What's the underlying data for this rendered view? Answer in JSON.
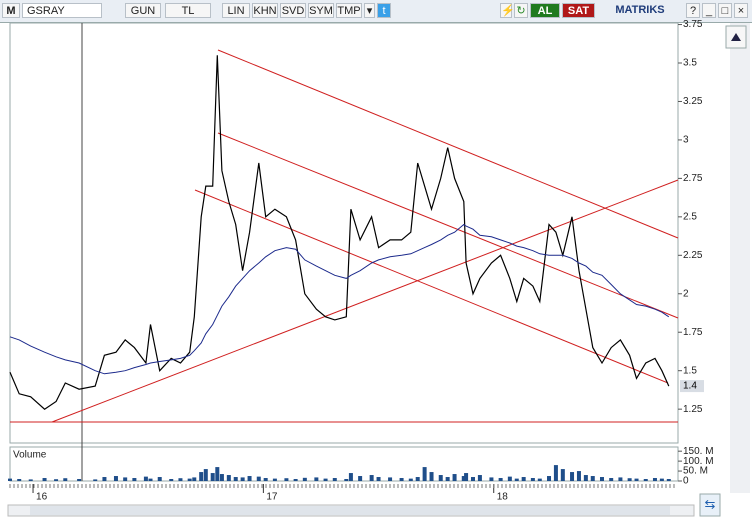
{
  "toolbar": {
    "logo": "M",
    "symbol": "GSRAY",
    "buttons": [
      "GUN",
      "TL",
      "LIN",
      "KHN",
      "SVD",
      "SYM",
      "TMP"
    ],
    "buy": "AL",
    "sell": "SAT",
    "brand": "MATRIKS"
  },
  "chart_data": [
    {
      "type": "line",
      "x": [
        15.9,
        15.94,
        15.99,
        16.05,
        16.1,
        16.14,
        16.2,
        16.27,
        16.31,
        16.36,
        16.4,
        16.44,
        16.49,
        16.51,
        16.55,
        16.6,
        16.64,
        16.68,
        16.7,
        16.73,
        16.75,
        16.78,
        16.8,
        16.82,
        16.85,
        16.88,
        16.91,
        16.94,
        16.98,
        17.01,
        17.05,
        17.1,
        17.14,
        17.18,
        17.23,
        17.27,
        17.31,
        17.36,
        17.38,
        17.42,
        17.47,
        17.5,
        17.55,
        17.6,
        17.64,
        17.67,
        17.7,
        17.73,
        17.77,
        17.8,
        17.83,
        17.87,
        17.88,
        17.91,
        17.94,
        17.99,
        18.03,
        18.07,
        18.1,
        18.13,
        18.17,
        18.2,
        18.24,
        18.27,
        18.3,
        18.34,
        18.37,
        18.4,
        18.43,
        18.47,
        18.51,
        18.55,
        18.59,
        18.62,
        18.66,
        18.7,
        18.73,
        18.76
      ],
      "series": [
        {
          "color": "#000000",
          "values": [
            1.49,
            1.35,
            1.33,
            1.25,
            1.3,
            1.42,
            1.38,
            1.4,
            1.6,
            1.62,
            1.7,
            1.65,
            1.55,
            1.8,
            1.5,
            1.58,
            1.55,
            1.62,
            1.85,
            2.5,
            2.7,
            2.7,
            3.55,
            2.8,
            2.6,
            2.45,
            2.15,
            2.4,
            2.85,
            2.5,
            2.55,
            2.5,
            2.35,
            2.0,
            1.9,
            1.85,
            1.83,
            1.85,
            2.55,
            2.35,
            2.5,
            2.3,
            2.35,
            2.35,
            2.4,
            2.85,
            2.7,
            2.55,
            2.75,
            2.95,
            2.75,
            2.6,
            2.2,
            2.0,
            2.1,
            2.2,
            2.25,
            2.1,
            1.95,
            2.1,
            2.05,
            1.95,
            2.45,
            2.4,
            2.25,
            2.5,
            2.15,
            1.9,
            1.65,
            1.55,
            1.65,
            1.7,
            1.6,
            1.45,
            1.55,
            1.58,
            1.5,
            1.4
          ]
        },
        {
          "color": "#1c2a8c",
          "values": [
            1.72,
            1.7,
            1.66,
            1.62,
            1.59,
            1.57,
            1.55,
            1.5,
            1.48,
            1.49,
            1.5,
            1.52,
            1.54,
            1.55,
            1.56,
            1.57,
            1.58,
            1.6,
            1.63,
            1.68,
            1.74,
            1.8,
            1.86,
            1.92,
            1.98,
            2.05,
            2.1,
            2.15,
            2.2,
            2.24,
            2.28,
            2.3,
            2.29,
            2.22,
            2.18,
            2.15,
            2.12,
            2.1,
            2.12,
            2.15,
            2.2,
            2.22,
            2.24,
            2.25,
            2.26,
            2.28,
            2.3,
            2.32,
            2.35,
            2.38,
            2.4,
            2.45,
            2.44,
            2.42,
            2.38,
            2.37,
            2.35,
            2.33,
            2.31,
            2.3,
            2.28,
            2.26,
            2.25,
            2.25,
            2.25,
            2.23,
            2.2,
            2.18,
            2.14,
            2.12,
            2.06,
            2.0,
            1.96,
            1.93,
            1.92,
            1.9,
            1.88,
            1.85
          ]
        }
      ],
      "xlim": [
        15.9,
        18.8
      ],
      "ylim": [
        1.03,
        3.76
      ],
      "yticks": [
        1.25,
        1.5,
        1.75,
        2,
        2.25,
        2.5,
        2.75,
        3,
        3.25,
        3.5,
        3.75
      ]
    },
    {
      "type": "bar",
      "title": "Volume",
      "color": "#1f4e8a",
      "x": [
        15.9,
        15.94,
        15.99,
        16.05,
        16.1,
        16.14,
        16.2,
        16.27,
        16.31,
        16.36,
        16.4,
        16.44,
        16.49,
        16.51,
        16.55,
        16.6,
        16.64,
        16.68,
        16.7,
        16.73,
        16.75,
        16.78,
        16.8,
        16.82,
        16.85,
        16.88,
        16.91,
        16.94,
        16.98,
        17.01,
        17.05,
        17.1,
        17.14,
        17.18,
        17.23,
        17.27,
        17.31,
        17.36,
        17.38,
        17.42,
        17.47,
        17.5,
        17.55,
        17.6,
        17.64,
        17.67,
        17.7,
        17.73,
        17.77,
        17.8,
        17.83,
        17.87,
        17.88,
        17.91,
        17.94,
        17.99,
        18.03,
        18.07,
        18.1,
        18.13,
        18.17,
        18.2,
        18.24,
        18.27,
        18.3,
        18.34,
        18.37,
        18.4,
        18.43,
        18.47,
        18.51,
        18.55,
        18.59,
        18.62,
        18.66,
        18.7,
        18.73,
        18.76
      ],
      "values": [
        12,
        10,
        8,
        15,
        9,
        14,
        10,
        8,
        20,
        25,
        18,
        15,
        22,
        12,
        20,
        10,
        14,
        12,
        18,
        45,
        60,
        40,
        70,
        35,
        30,
        20,
        18,
        25,
        22,
        15,
        12,
        14,
        10,
        16,
        18,
        12,
        15,
        10,
        40,
        25,
        30,
        20,
        18,
        15,
        12,
        20,
        70,
        45,
        30,
        20,
        35,
        25,
        40,
        20,
        30,
        18,
        15,
        22,
        12,
        20,
        15,
        12,
        25,
        80,
        60,
        45,
        50,
        30,
        25,
        20,
        15,
        18,
        14,
        12,
        10,
        15,
        12,
        10
      ],
      "xlim": [
        15.9,
        18.8
      ],
      "ylim": [
        0,
        171
      ],
      "yticks": [
        0,
        {
          "value": 50,
          "label": "50. M"
        },
        {
          "value": 100,
          "label": "100. M"
        },
        {
          "value": 150,
          "label": "150. M"
        }
      ],
      "xticks": [
        16,
        17,
        18
      ]
    }
  ]
}
